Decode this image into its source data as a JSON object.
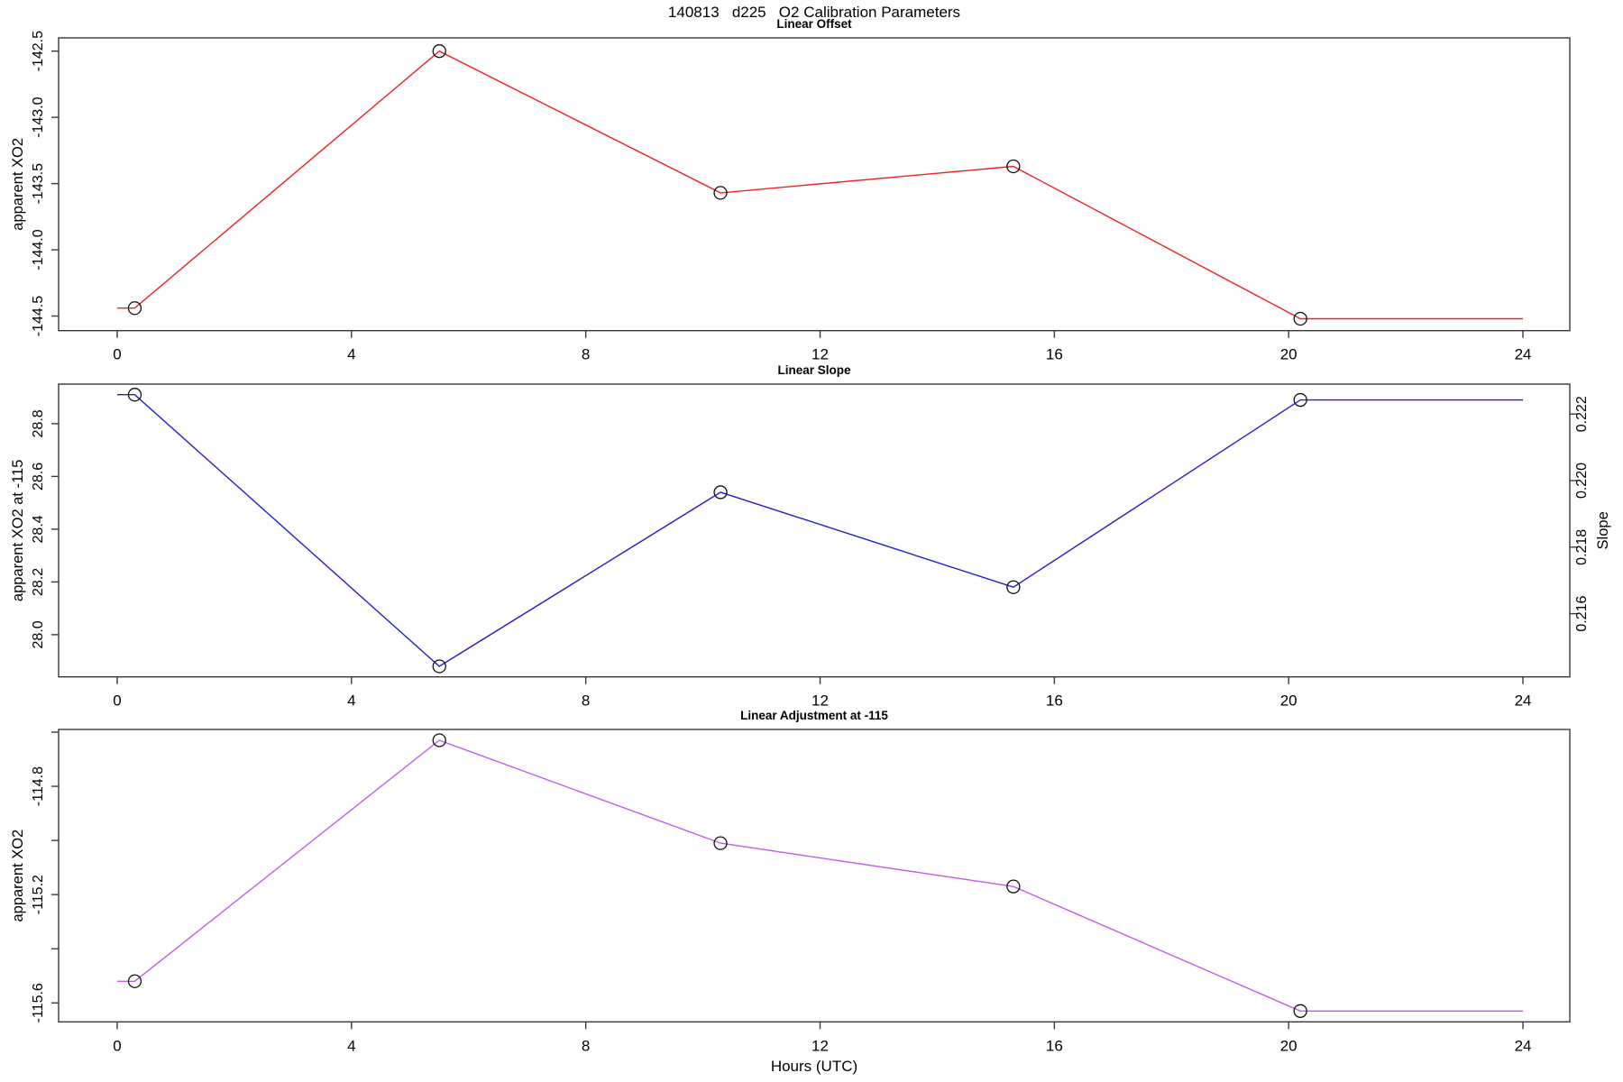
{
  "title": "140813   d225   O2 Calibration Parameters",
  "xlabel": "Hours (UTC)",
  "chart_data": [
    {
      "type": "line",
      "title": "Linear Offset",
      "ylabel": "apparent XO2",
      "line_color": "#ee2222",
      "marker": "open-circle",
      "x": [
        0.3,
        5.5,
        10.3,
        15.3,
        20.2
      ],
      "y": [
        -144.44,
        -142.5,
        -143.57,
        -143.37,
        -144.52
      ],
      "extend_to_x": [
        0,
        24
      ],
      "xlim": [
        -1.0,
        24.8
      ],
      "ylim": [
        -144.61,
        -142.4
      ],
      "xticks": [
        0,
        4,
        8,
        12,
        16,
        20,
        24
      ],
      "yticks": [
        -142.5,
        -143.0,
        -143.5,
        -144.0,
        -144.5
      ],
      "ytick_labels": [
        "-142.5",
        "-143.0",
        "-143.5",
        "-144.0",
        "-144.5"
      ],
      "grid": "off",
      "legend": "none"
    },
    {
      "type": "line",
      "title": "Linear Slope",
      "ylabel": "apparent XO2 at -115",
      "y2label": "Slope",
      "line_color": "#2222cc",
      "marker": "open-circle",
      "x": [
        0.3,
        5.5,
        10.3,
        15.3,
        20.2
      ],
      "y": [
        28.91,
        27.88,
        28.54,
        28.18,
        28.89
      ],
      "extend_to_x": [
        0,
        24
      ],
      "xlim": [
        -1.0,
        24.8
      ],
      "ylim": [
        27.84,
        28.95
      ],
      "y2lim": [
        0.2141,
        0.2229
      ],
      "xticks": [
        0,
        4,
        8,
        12,
        16,
        20,
        24
      ],
      "yticks": [
        28.8,
        28.6,
        28.4,
        28.2,
        28.0
      ],
      "ytick_labels": [
        "28.8",
        "28.6",
        "28.4",
        "28.2",
        "28.0"
      ],
      "y2ticks": [
        0.222,
        0.22,
        0.218,
        0.216
      ],
      "y2tick_labels": [
        "0.222",
        "0.220",
        "0.218",
        "0.216"
      ],
      "grid": "off",
      "legend": "none"
    },
    {
      "type": "line",
      "title": "Linear Adjustment at -115",
      "ylabel": "apparent XO2",
      "line_color": "#c35be8",
      "marker": "open-circle",
      "x": [
        0.3,
        5.5,
        10.3,
        15.3,
        20.2
      ],
      "y": [
        -115.52,
        -114.63,
        -115.01,
        -115.17,
        -115.63
      ],
      "extend_to_x": [
        0,
        24
      ],
      "xlim": [
        -1.0,
        24.8
      ],
      "ylim": [
        -115.67,
        -114.59
      ],
      "xticks": [
        0,
        4,
        8,
        12,
        16,
        20,
        24
      ],
      "yticks": [
        -114.6,
        -114.8,
        -115.0,
        -115.2,
        -115.4,
        -115.6
      ],
      "ytick_labels": [
        "",
        "-114.8",
        "",
        "-115.2",
        "",
        "-115.6"
      ],
      "grid": "off",
      "legend": "none"
    }
  ]
}
